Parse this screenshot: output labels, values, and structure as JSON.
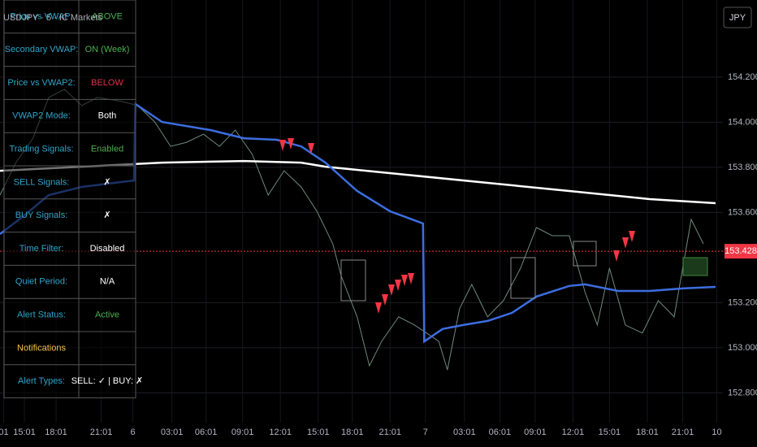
{
  "symbol_label": "USDJPY · 5 · IC Markets",
  "currency_button": "JPY",
  "panel": {
    "rows": [
      {
        "label": "Price vs VWAP:",
        "value": "ABOVE",
        "color": "#4caf50"
      },
      {
        "label": "Secondary VWAP:",
        "value": "ON (Week)",
        "color": "#4caf50"
      },
      {
        "label": "Price vs VWAP2:",
        "value": "BELOW",
        "color": "#e0304a"
      },
      {
        "label": "VWAP2 Mode:",
        "value": "Both",
        "color": "#ffffff"
      },
      {
        "label": "Trading Signals:",
        "value": "Enabled",
        "color": "#4caf50"
      },
      {
        "label": "SELL Signals:",
        "value": "✗",
        "color": "#ffffff"
      },
      {
        "label": "BUY Signals:",
        "value": "✗",
        "color": "#ffffff"
      },
      {
        "label": "Time Filter:",
        "value": "Disabled",
        "color": "#ffffff"
      },
      {
        "label": "Quiet Period:",
        "value": "N/A",
        "color": "#ffffff"
      },
      {
        "label": "Alert Status:",
        "value": "Active",
        "color": "#4caf50"
      },
      {
        "label": "Notifications",
        "color": "#f5c542"
      },
      {
        "label": "Alert Types:",
        "value": "SELL: ✓ | BUY: ✗",
        "color": "#ffffff"
      }
    ]
  },
  "chart_data": {
    "type": "line",
    "grid": true,
    "xlim": [
      0,
      59.3
    ],
    "ylim": [
      152.668,
      154.542
    ],
    "xticks": [
      {
        "value": 0.3,
        "label": "01"
      },
      {
        "value": 2,
        "label": "15:01"
      },
      {
        "value": 4.6,
        "label": "18:01"
      },
      {
        "value": 8.3,
        "label": "21:01"
      },
      {
        "value": 10.9,
        "label": "6"
      },
      {
        "value": 14.1,
        "label": "03:01"
      },
      {
        "value": 16.9,
        "label": "06:01"
      },
      {
        "value": 19.9,
        "label": "09:01"
      },
      {
        "value": 23,
        "label": "12:01"
      },
      {
        "value": 26.1,
        "label": "15:01"
      },
      {
        "value": 28.9,
        "label": "18:01"
      },
      {
        "value": 32,
        "label": "21:01"
      },
      {
        "value": 34.9,
        "label": "7"
      },
      {
        "value": 38.1,
        "label": "03:01"
      },
      {
        "value": 41,
        "label": "06:01"
      },
      {
        "value": 43.9,
        "label": "09:01"
      },
      {
        "value": 47,
        "label": "12:01"
      },
      {
        "value": 50,
        "label": "15:01"
      },
      {
        "value": 53.1,
        "label": "18:01"
      },
      {
        "value": 56,
        "label": "21:01"
      },
      {
        "value": 58.8,
        "label": "10"
      }
    ],
    "yticks": [
      {
        "value": 154.2,
        "label": "154.200"
      },
      {
        "value": 154.0,
        "label": "154.000"
      },
      {
        "value": 153.8,
        "label": "153.800"
      },
      {
        "value": 153.6,
        "label": "153.600"
      },
      {
        "value": 153.2,
        "label": "153.200"
      },
      {
        "value": 153.0,
        "label": "153.000"
      },
      {
        "value": 152.8,
        "label": "152.800"
      }
    ],
    "last_price": 153.428,
    "last_price_color": "#f23645",
    "series": [
      {
        "color": "#6f8a7c",
        "x": [
          0,
          1.3,
          2.7,
          4,
          5.3,
          6.7,
          8,
          10,
          11.3,
          12.7,
          14,
          15.3,
          16.7,
          18,
          19.3,
          20.7,
          22,
          23.3,
          24.7,
          26,
          27.3,
          28,
          29.3,
          30.3,
          31.3,
          32.7,
          34,
          35,
          36,
          36.7,
          37.7,
          38.7,
          40,
          41.3,
          42.7,
          44,
          45.3,
          46.7,
          48,
          49,
          50,
          51.3,
          52.7,
          54,
          55.3,
          56.7,
          57.7
        ],
        "values": [
          153.677,
          153.821,
          153.929,
          154.11,
          154.146,
          154.074,
          154.11,
          154.092,
          154.074,
          154.001,
          153.893,
          153.911,
          153.947,
          153.893,
          153.965,
          153.857,
          153.677,
          153.785,
          153.713,
          153.605,
          153.461,
          153.317,
          153.137,
          152.92,
          153.028,
          153.137,
          153.101,
          153.065,
          153.028,
          152.902,
          153.173,
          153.281,
          153.137,
          153.209,
          153.353,
          153.533,
          153.497,
          153.497,
          153.245,
          153.101,
          153.353,
          153.101,
          153.065,
          153.209,
          153.137,
          153.569,
          153.461
        ]
      },
      {
        "color": "#ffffff",
        "x": [
          0,
          6.7,
          13.3,
          20,
          24.7,
          26.7,
          33.3,
          40,
          46.7,
          53.3,
          58.7
        ],
        "values": [
          153.785,
          153.803,
          153.821,
          153.828,
          153.821,
          153.803,
          153.767,
          153.731,
          153.695,
          153.659,
          153.641
        ]
      },
      {
        "color": "#3d6ee0",
        "x": [
          0,
          2,
          4,
          6.7,
          11,
          11.1,
          13.3,
          17.3,
          20,
          22.7,
          24.7,
          26.7,
          29.3,
          32,
          34.7,
          34.8,
          36.3,
          38,
          40,
          42,
          44,
          46.7,
          48,
          50.7,
          53.3,
          56,
          58.7
        ],
        "values": [
          153.504,
          153.587,
          153.677,
          153.713,
          153.742,
          154.081,
          154.001,
          153.965,
          153.929,
          153.922,
          153.893,
          153.821,
          153.695,
          153.605,
          153.551,
          153.028,
          153.083,
          153.101,
          153.119,
          153.155,
          153.227,
          153.274,
          153.281,
          153.252,
          153.252,
          153.263,
          153.27
        ]
      }
    ]
  }
}
